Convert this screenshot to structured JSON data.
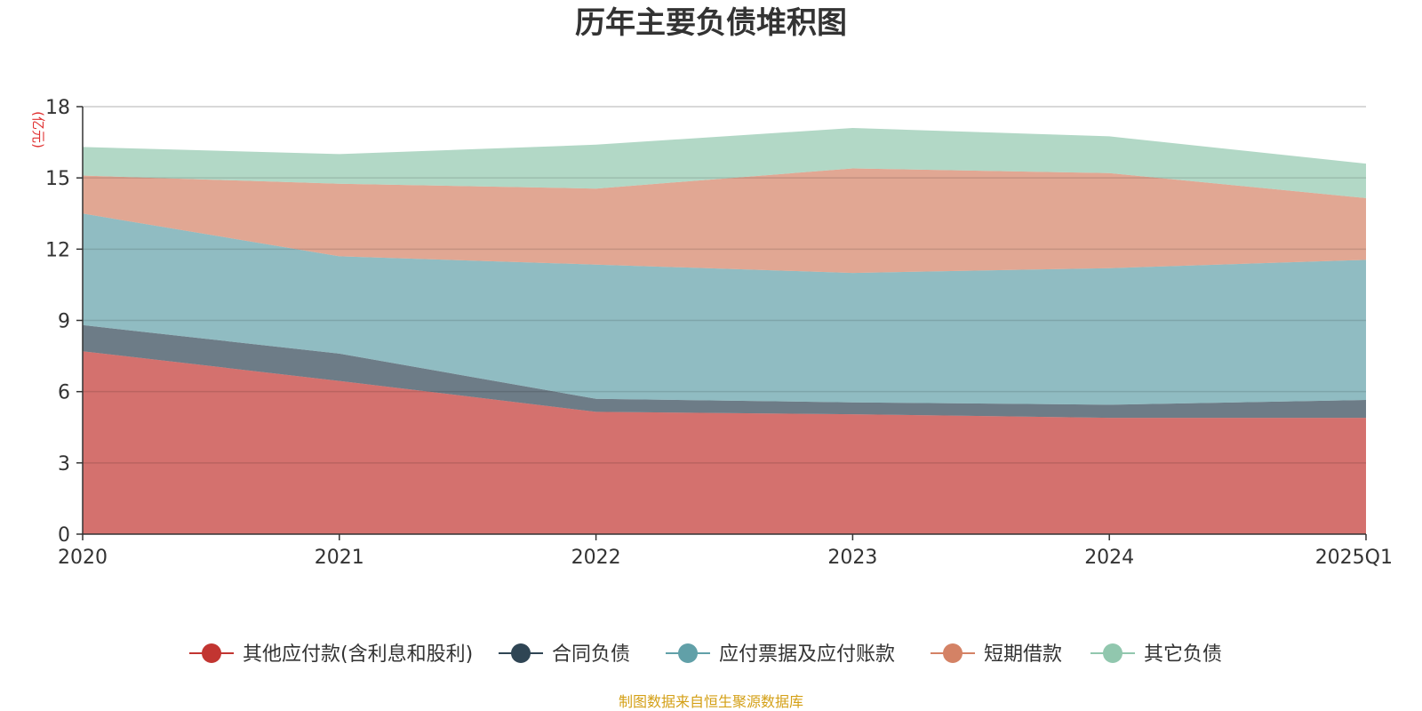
{
  "chart_data": {
    "type": "area",
    "stacked": true,
    "title": "历年主要负债堆积图",
    "ylabel": "(亿元)",
    "ylim": [
      0,
      18
    ],
    "yticks": [
      0,
      3,
      6,
      9,
      12,
      15,
      18
    ],
    "categories": [
      "2020",
      "2021",
      "2022",
      "2023",
      "2024",
      "2025Q1"
    ],
    "grid": true,
    "legend_position": "bottom",
    "series": [
      {
        "name": "其他应付款(含利息和股利)",
        "color": "#c23531",
        "values": [
          7.7,
          6.45,
          5.15,
          5.05,
          4.9,
          4.9
        ]
      },
      {
        "name": "合同负债",
        "color": "#2f4554",
        "values": [
          1.1,
          1.15,
          0.55,
          0.5,
          0.55,
          0.75
        ]
      },
      {
        "name": "应付票据及应付账款",
        "color": "#61a0a8",
        "values": [
          4.7,
          4.1,
          5.65,
          5.45,
          5.75,
          5.9
        ]
      },
      {
        "name": "短期借款",
        "color": "#d48265",
        "values": [
          1.6,
          3.05,
          3.2,
          4.4,
          4.0,
          2.6
        ]
      },
      {
        "name": "其它负债",
        "color": "#91c7ae",
        "values": [
          1.2,
          1.25,
          1.85,
          1.7,
          1.55,
          1.45
        ]
      }
    ],
    "source": "制图数据来自恒生聚源数据库"
  }
}
